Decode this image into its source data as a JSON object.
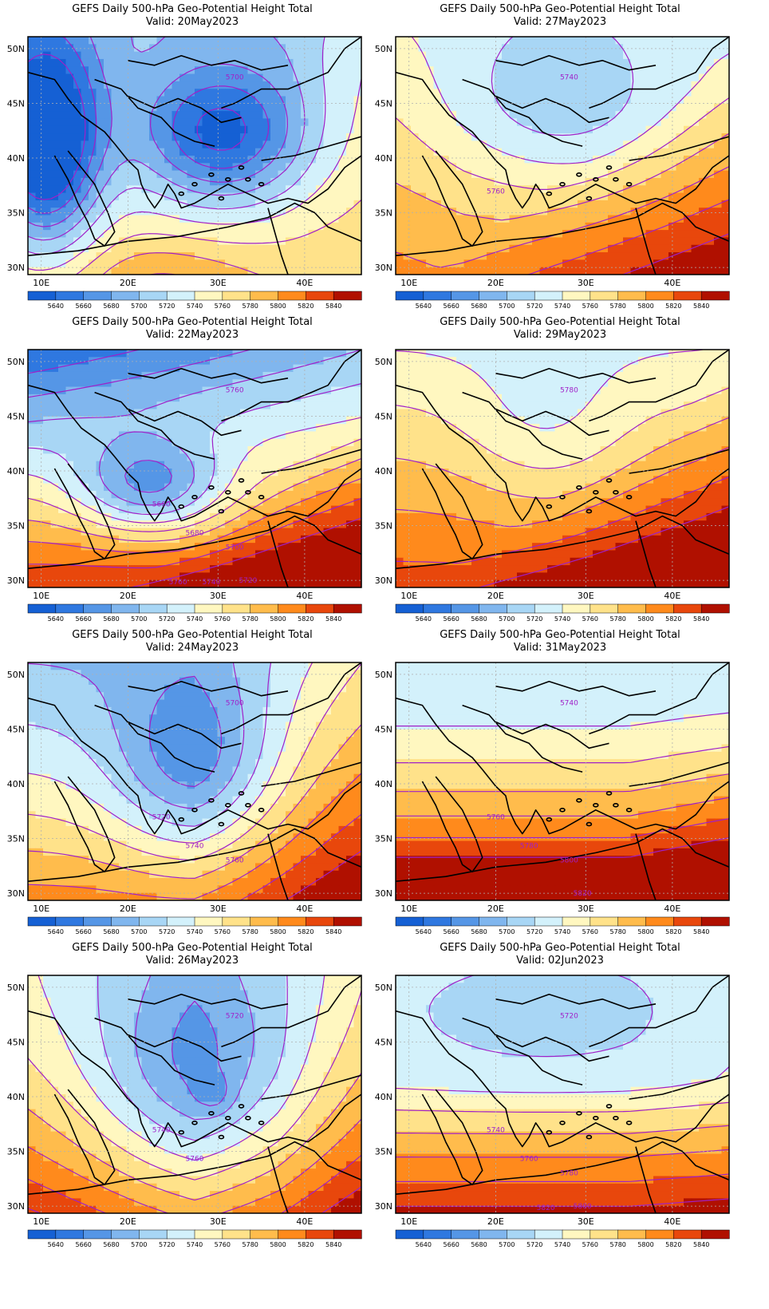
{
  "title_prefix": "GEFS Daily 500-hPa Geo-Potential Height Total",
  "valid_prefix": "Valid: ",
  "lat_labels": [
    "50N",
    "45N",
    "40N",
    "35N",
    "30N"
  ],
  "lon_labels": [
    "10E",
    "20E",
    "30E",
    "40E"
  ],
  "colorbar_labels": [
    "5640",
    "5660",
    "5680",
    "5700",
    "5720",
    "5740",
    "5760",
    "5780",
    "5800",
    "5820",
    "5840"
  ],
  "colorbar_colors": [
    "#1560d4",
    "#2f78e0",
    "#5596e6",
    "#80b6ee",
    "#a8d6f5",
    "#d3f1fb",
    "#fff7c0",
    "#ffe28a",
    "#ffbc4c",
    "#ff8a1c",
    "#e8470c",
    "#b01000"
  ],
  "contour_color": "#a020c8",
  "panels": [
    {
      "valid": "20May2023",
      "field": "low_w_and_e",
      "contour_labels": [
        {
          "text": "5700"
        }
      ]
    },
    {
      "valid": "27May2023",
      "field": "weak_low_ne",
      "contour_labels": [
        {
          "text": "5740"
        },
        {
          "text": "5760"
        }
      ]
    },
    {
      "valid": "22May2023",
      "field": "deep_low_greece",
      "contour_labels": [
        {
          "text": "5760"
        },
        {
          "text": "5660"
        },
        {
          "text": "5680"
        },
        {
          "text": "5700"
        },
        {
          "text": "5720"
        },
        {
          "text": "5740"
        },
        {
          "text": "5760"
        }
      ]
    },
    {
      "valid": "29May2023",
      "field": "weak_low_n",
      "contour_labels": [
        {
          "text": "5780"
        }
      ]
    },
    {
      "valid": "24May2023",
      "field": "low_central",
      "contour_labels": [
        {
          "text": "5700"
        },
        {
          "text": "5720"
        },
        {
          "text": "5740"
        },
        {
          "text": "5760"
        }
      ]
    },
    {
      "valid": "31May2023",
      "field": "zonal",
      "contour_labels": [
        {
          "text": "5740"
        },
        {
          "text": "5760"
        },
        {
          "text": "5780"
        },
        {
          "text": "5800"
        },
        {
          "text": "5820"
        }
      ]
    },
    {
      "valid": "26May2023",
      "field": "low_aegean",
      "contour_labels": [
        {
          "text": "5720"
        },
        {
          "text": "5740"
        },
        {
          "text": "5760"
        }
      ]
    },
    {
      "valid": "02Jun2023",
      "field": "ridge_north",
      "contour_labels": [
        {
          "text": "5720"
        },
        {
          "text": "5740"
        },
        {
          "text": "5760"
        },
        {
          "text": "5780"
        },
        {
          "text": "5800"
        },
        {
          "text": "5820"
        }
      ]
    }
  ]
}
